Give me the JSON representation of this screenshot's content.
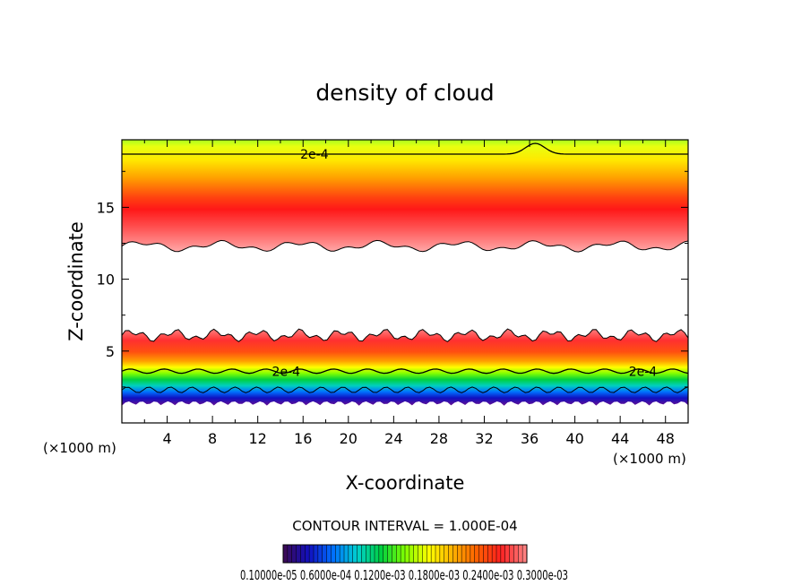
{
  "chart_data": {
    "type": "heatmap",
    "title": "density of cloud",
    "xlabel": "X-coordinate",
    "ylabel": "Z-coordinate",
    "x_unit": "(×1000 m)",
    "z_unit": "(×1000 m)",
    "xlim": [
      0,
      50
    ],
    "ylim": [
      0,
      19.7
    ],
    "x_ticks": [
      4,
      8,
      12,
      16,
      20,
      24,
      28,
      32,
      36,
      40,
      44,
      48
    ],
    "y_ticks": [
      5,
      10,
      15
    ],
    "contour_interval_text": "CONTOUR INTERVAL = 1.000E-04",
    "contour_labels": [
      {
        "text": "2e-4",
        "x": 17,
        "z": 18.7
      },
      {
        "text": "2e-4",
        "x": 14.5,
        "z": 3.6
      },
      {
        "text": "2e-4",
        "x": 46,
        "z": 3.6
      }
    ],
    "upper_layer": {
      "z_base": 12.3,
      "z_peak": 15,
      "z_top": 19.7,
      "contour_2e4_z": 18.7
    },
    "lower_layer": {
      "z_bottom": 1.2,
      "z_peak": 5,
      "z_top": 6.1,
      "contour_2e4_z": 3.6
    },
    "colorbar": {
      "min_label": "0.1000e-05",
      "labels_text": "0.10000e-05 0.6000e-04 0.1200e-03 0.1800e-03 0.2400e-03 0.3000e-03",
      "palette": [
        "#3a0a5a",
        "#1010c0",
        "#0070ff",
        "#00d0d0",
        "#00d040",
        "#80ff00",
        "#ffff00",
        "#ffb000",
        "#ff6000",
        "#ff2020",
        "#ff8080"
      ]
    }
  }
}
